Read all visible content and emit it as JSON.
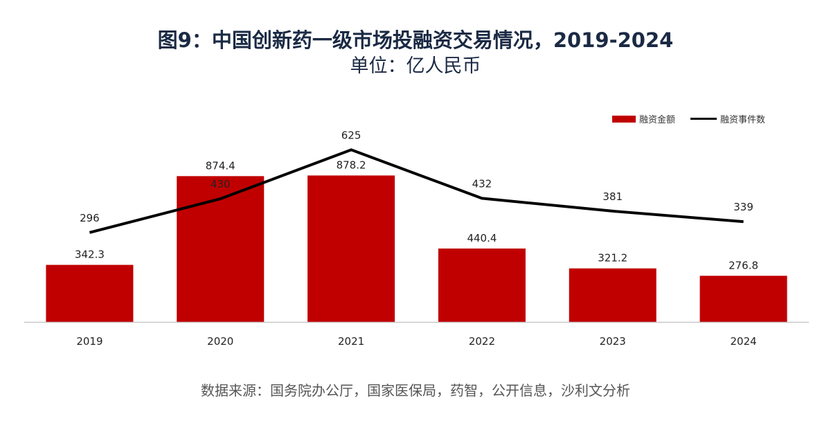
{
  "title": "图9：中国创新药一级市场投融资交易情况，2019-2024",
  "subtitle": "单位：亿人民币",
  "source": "数据来源：国务院办公厅，国家医保局，药智，公开信息，沙利文分析",
  "colors": {
    "bar": "#c00000",
    "line": "#000000",
    "axis": "#c8c8c8",
    "text": "#222222"
  },
  "chart_data": {
    "type": "bar",
    "categories": [
      "2019",
      "2020",
      "2021",
      "2022",
      "2023",
      "2024"
    ],
    "series": [
      {
        "name": "融资金额",
        "type": "bar",
        "values": [
          342.3,
          874.4,
          878.2,
          440.4,
          321.2,
          276.8
        ],
        "labels": [
          "342.3",
          "874.4",
          "878.2",
          "440.4",
          "321.2",
          "276.8"
        ],
        "ylim": [
          0,
          1100
        ]
      },
      {
        "name": "融资事件数",
        "type": "line",
        "values": [
          296,
          430,
          625,
          432,
          381,
          339
        ],
        "labels": [
          "296",
          "430",
          "625",
          "432",
          "381",
          "339"
        ],
        "ylim": [
          -60,
          670
        ]
      }
    ],
    "title": "图9：中国创新药一级市场投融资交易情况，2019-2024",
    "ylabel": "单位：亿人民币",
    "grid": false,
    "legend": "top-right"
  }
}
